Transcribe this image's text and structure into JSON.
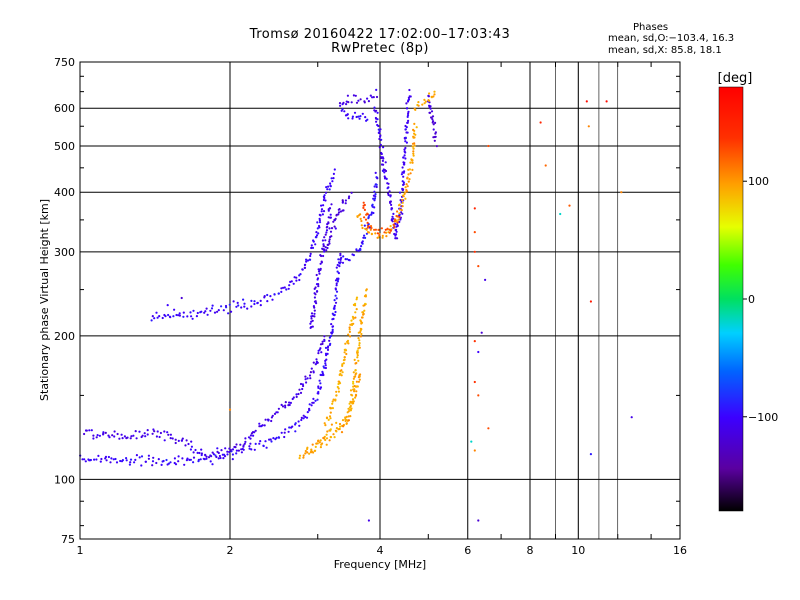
{
  "header": {
    "title_line_1": "Tromsø 20160422 17:02:00–17:03:43",
    "title_line_2": "RwPretec (8p)",
    "phases_heading": "Phases",
    "phases_o_stats": "mean, sd,O:−103.4, 16.3",
    "phases_x_stats": "mean, sd,X:  85.8, 18.1"
  },
  "colorbar": {
    "unit_label": "[deg]",
    "range": [
      -180,
      180
    ],
    "tick_labels": [
      "100",
      "0",
      "−100"
    ],
    "tick_values": [
      100,
      0,
      -100
    ]
  },
  "chart_data": {
    "type": "scatter",
    "title": "Tromsø 20160422 17:02:00–17:03:43",
    "subtitle": "RwPretec (8p)",
    "xlabel": "Frequency [MHz]",
    "ylabel": "Stationary phase Virtual Height [km]",
    "x_scale": "log",
    "y_scale": "log",
    "xlim": [
      1,
      16
    ],
    "ylim": [
      75,
      750
    ],
    "x_ticks": [
      1,
      2,
      4,
      6,
      8,
      10,
      16
    ],
    "x_tick_labels": [
      "1",
      "2",
      "4",
      "6",
      "8",
      "10",
      "16"
    ],
    "y_ticks": [
      75,
      100,
      200,
      300,
      400,
      500,
      600,
      750
    ],
    "y_tick_labels": [
      "75",
      "100",
      "200",
      "300",
      "400",
      "500",
      "600",
      "750"
    ],
    "grid": true,
    "color_encoding": "phase [deg], rainbow scale from -180 (black/purple) to 180 (red)",
    "traces": [
      {
        "name": "",
        "phase": -100,
        "points": [
          [
            1.0,
            110
          ],
          [
            1.2,
            110
          ],
          [
            1.5,
            109
          ],
          [
            1.8,
            110
          ],
          [
            2.0,
            113
          ],
          [
            2.3,
            118
          ],
          [
            2.6,
            125
          ],
          [
            2.8,
            133
          ],
          [
            3.0,
            150
          ],
          [
            3.1,
            175
          ],
          [
            3.2,
            200
          ],
          [
            3.25,
            230
          ],
          [
            3.3,
            270
          ],
          [
            3.35,
            300
          ]
        ]
      },
      {
        "name": "",
        "phase": -110,
        "points": [
          [
            1.02,
            125
          ],
          [
            1.2,
            122
          ],
          [
            1.4,
            125
          ],
          [
            1.6,
            120
          ],
          [
            1.8,
            112
          ],
          [
            2.1,
            117
          ],
          [
            2.4,
            135
          ],
          [
            2.7,
            148
          ],
          [
            2.95,
            170
          ],
          [
            3.1,
            200
          ]
        ]
      },
      {
        "name": "",
        "phase": -100,
        "points": [
          [
            1.4,
            218
          ],
          [
            1.6,
            221
          ],
          [
            1.8,
            226
          ],
          [
            2.0,
            230
          ],
          [
            2.3,
            237
          ],
          [
            2.5,
            248
          ],
          [
            2.7,
            263
          ],
          [
            2.8,
            275
          ],
          [
            2.9,
            300
          ],
          [
            3.0,
            330
          ],
          [
            3.05,
            360
          ],
          [
            3.1,
            390
          ],
          [
            3.2,
            420
          ],
          [
            3.25,
            440
          ]
        ]
      },
      {
        "name": "",
        "phase": -110,
        "points": [
          [
            2.9,
            205
          ],
          [
            2.95,
            230
          ],
          [
            3.0,
            260
          ],
          [
            3.05,
            290
          ],
          [
            3.1,
            320
          ],
          [
            3.15,
            350
          ],
          [
            3.2,
            380
          ]
        ]
      },
      {
        "name": "",
        "phase": -95,
        "points": [
          [
            3.3,
            288
          ],
          [
            3.45,
            290
          ],
          [
            3.6,
            298
          ],
          [
            3.7,
            315
          ],
          [
            3.8,
            345
          ],
          [
            3.9,
            390
          ],
          [
            3.95,
            440
          ]
        ]
      },
      {
        "name": "",
        "phase": -115,
        "points": [
          [
            3.1,
            300
          ],
          [
            3.2,
            330
          ],
          [
            3.3,
            360
          ],
          [
            3.4,
            385
          ],
          [
            3.5,
            400
          ]
        ]
      },
      {
        "name": "",
        "phase": -105,
        "points": [
          [
            3.9,
            600
          ],
          [
            3.95,
            560
          ],
          [
            4.0,
            530
          ],
          [
            4.05,
            480
          ],
          [
            4.1,
            430
          ],
          [
            4.2,
            390
          ],
          [
            4.25,
            350
          ],
          [
            4.3,
            320
          ],
          [
            4.4,
            360
          ],
          [
            4.45,
            420
          ],
          [
            4.5,
            520
          ],
          [
            4.55,
            600
          ],
          [
            4.6,
            650
          ]
        ]
      },
      {
        "name": "",
        "phase": -110,
        "points": [
          [
            3.3,
            600
          ],
          [
            3.45,
            620
          ],
          [
            3.6,
            625
          ],
          [
            3.8,
            630
          ],
          [
            4.0,
            640
          ]
        ]
      },
      {
        "name": "",
        "phase": -100,
        "points": [
          [
            3.35,
            590
          ],
          [
            3.5,
            570
          ],
          [
            3.7,
            575
          ],
          [
            3.8,
            560
          ]
        ]
      },
      {
        "name": "",
        "phase": -115,
        "points": [
          [
            5.0,
            640
          ],
          [
            5.1,
            560
          ],
          [
            5.2,
            500
          ]
        ]
      },
      {
        "name": "",
        "phase": 95,
        "points": [
          [
            2.75,
            112
          ],
          [
            2.9,
            115
          ],
          [
            3.05,
            120
          ],
          [
            3.2,
            128
          ],
          [
            3.4,
            133
          ],
          [
            3.5,
            145
          ],
          [
            3.55,
            160
          ],
          [
            3.6,
            180
          ],
          [
            3.65,
            200
          ],
          [
            3.7,
            220
          ],
          [
            3.75,
            250
          ]
        ]
      },
      {
        "name": "",
        "phase": 100,
        "points": [
          [
            2.85,
            113
          ],
          [
            3.0,
            118
          ],
          [
            3.2,
            123
          ],
          [
            3.35,
            128
          ],
          [
            3.5,
            138
          ],
          [
            3.6,
            160
          ],
          [
            3.65,
            170
          ]
        ]
      },
      {
        "name": "",
        "phase": 95,
        "points": [
          [
            3.1,
            130
          ],
          [
            3.2,
            140
          ],
          [
            3.3,
            155
          ],
          [
            3.4,
            180
          ],
          [
            3.5,
            210
          ],
          [
            3.6,
            240
          ]
        ]
      },
      {
        "name": "",
        "phase": 100,
        "points": [
          [
            3.6,
            360
          ],
          [
            3.7,
            340
          ],
          [
            3.8,
            328
          ],
          [
            3.95,
            325
          ],
          [
            4.1,
            328
          ],
          [
            4.3,
            345
          ],
          [
            4.5,
            400
          ],
          [
            4.65,
            470
          ],
          [
            4.7,
            560
          ]
        ]
      },
      {
        "name": "",
        "phase": 130,
        "points": [
          [
            3.7,
            380
          ],
          [
            3.8,
            342
          ],
          [
            4.0,
            330
          ],
          [
            4.2,
            335
          ],
          [
            4.4,
            360
          ]
        ]
      },
      {
        "name": "",
        "phase": 95,
        "points": [
          [
            4.7,
            600
          ],
          [
            4.8,
            610
          ],
          [
            5.0,
            620
          ],
          [
            5.1,
            640
          ],
          [
            5.2,
            650
          ]
        ]
      }
    ],
    "sparse_points": [
      [
        6.2,
        370,
        150
      ],
      [
        6.2,
        330,
        130
      ],
      [
        6.2,
        300,
        140
      ],
      [
        6.3,
        280,
        130
      ],
      [
        6.2,
        195,
        140
      ],
      [
        6.3,
        185,
        -100
      ],
      [
        6.2,
        160,
        140
      ],
      [
        6.3,
        150,
        130
      ],
      [
        6.1,
        120,
        -20
      ],
      [
        6.2,
        115,
        110
      ],
      [
        6.3,
        82,
        -120
      ],
      [
        6.4,
        203,
        -120
      ],
      [
        6.5,
        262,
        -110
      ],
      [
        6.6,
        500,
        130
      ],
      [
        6.6,
        128,
        130
      ],
      [
        8.4,
        560,
        150
      ],
      [
        8.6,
        455,
        120
      ],
      [
        9.2,
        360,
        -20
      ],
      [
        9.6,
        375,
        125
      ],
      [
        10.4,
        620,
        170
      ],
      [
        10.5,
        550,
        110
      ],
      [
        10.6,
        236,
        160
      ],
      [
        10.6,
        113,
        -90
      ],
      [
        11.4,
        620,
        170
      ],
      [
        12.2,
        400,
        110
      ],
      [
        12.8,
        135,
        -110
      ],
      [
        1.4,
        220,
        -110
      ],
      [
        1.5,
        232,
        -100
      ],
      [
        1.6,
        240,
        -120
      ],
      [
        2.0,
        140,
        110
      ],
      [
        3.8,
        82,
        -110
      ]
    ]
  }
}
